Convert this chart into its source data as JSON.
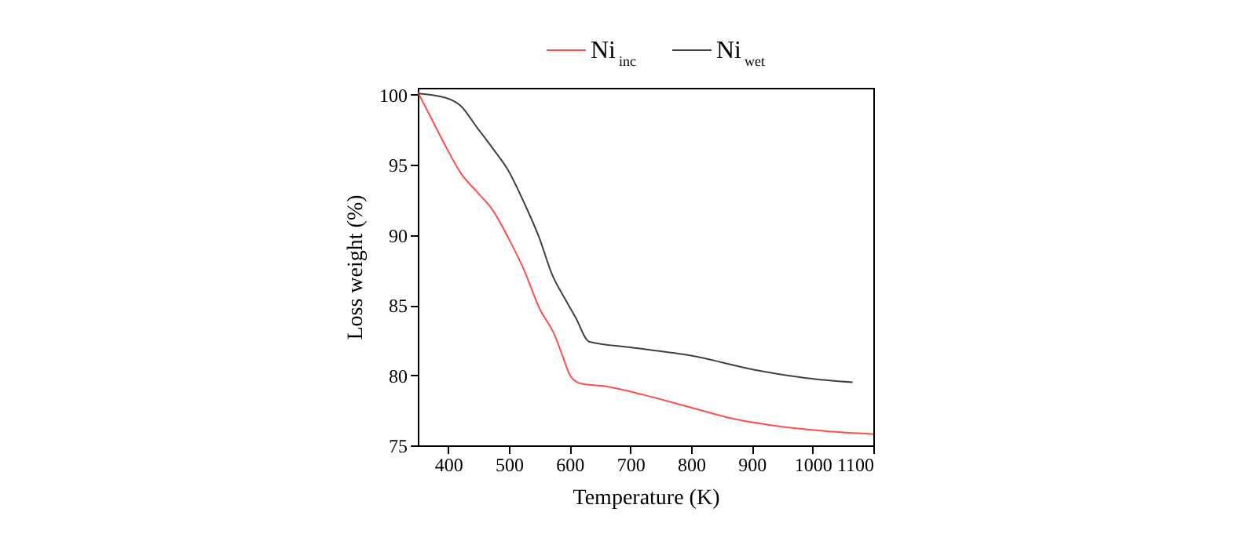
{
  "chart_data": {
    "type": "line",
    "xlabel": "Temperature (K)",
    "ylabel": "Loss weight (%)",
    "xlim": [
      350,
      1100
    ],
    "xticks": [
      400,
      500,
      600,
      700,
      800,
      900,
      1000,
      1100
    ],
    "ylim": [
      75,
      100.5
    ],
    "yticks": [
      75,
      80,
      85,
      90,
      95,
      100
    ],
    "legend": "top",
    "grid": false,
    "marker": "none",
    "line_style": "solid",
    "series": [
      {
        "name": "Ni$_{inc}$",
        "color": "#ff4d4d",
        "x": [
          350,
          369,
          395,
          421,
          447,
          473,
          499,
          524,
          550,
          576,
          589,
          602,
          619,
          662,
          722,
          800,
          869,
          938,
          1024,
          1100
        ],
        "values": [
          100.2,
          98.6,
          96.4,
          94.4,
          93.1,
          91.8,
          89.8,
          87.6,
          84.8,
          82.8,
          81.3,
          79.9,
          79.4,
          79.2,
          78.6,
          77.7,
          76.9,
          76.4,
          76.0,
          75.8
        ]
      },
      {
        "name": "Ni$_{wet}$",
        "color": "#404040",
        "x": [
          350,
          395,
          421,
          447,
          473,
          499,
          524,
          550,
          571,
          593,
          610,
          632,
          697,
          800,
          903,
          990,
          1066
        ],
        "values": [
          100.1,
          99.8,
          99.2,
          97.7,
          96.2,
          94.6,
          92.4,
          89.8,
          87.2,
          85.4,
          84.1,
          82.4,
          82.0,
          81.4,
          80.4,
          79.8,
          79.5
        ]
      }
    ]
  }
}
